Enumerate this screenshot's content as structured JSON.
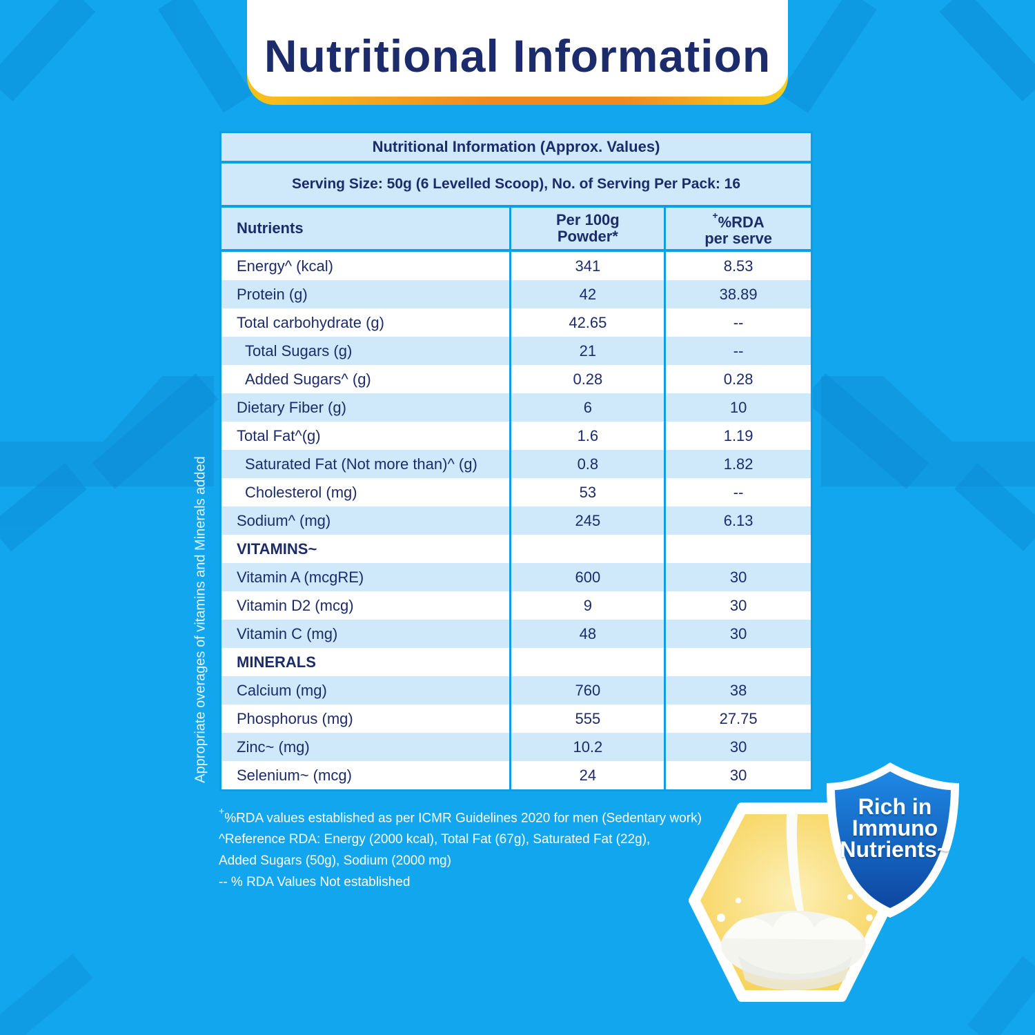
{
  "header": {
    "title": "Nutritional Information"
  },
  "table": {
    "title": "Nutritional Information (Approx. Values)",
    "serving": "Serving Size: 50g (6 Levelled Scoop), No. of Serving Per Pack: 16",
    "columns": {
      "nutrients": "Nutrients",
      "per100_line1": "Per 100g",
      "per100_line2": "Powder*",
      "rda_plus": "+",
      "rda_line1": "%RDA",
      "rda_line2": "per serve"
    },
    "rows": [
      {
        "name": "Energy^ (kcal)",
        "per100": "341",
        "rda": "8.53"
      },
      {
        "name": "Protein (g)",
        "per100": "42",
        "rda": "38.89"
      },
      {
        "name": "Total carbohydrate (g)",
        "per100": "42.65",
        "rda": "--"
      },
      {
        "name": "Total Sugars (g)",
        "per100": "21",
        "rda": "--"
      },
      {
        "name": "Added Sugars^ (g)",
        "per100": "0.28",
        "rda": "0.28"
      },
      {
        "name": "Dietary Fiber (g)",
        "per100": "6",
        "rda": "10"
      },
      {
        "name": "Total Fat^(g)",
        "per100": "1.6",
        "rda": "1.19"
      },
      {
        "name": "Saturated Fat (Not more than)^ (g)",
        "per100": "0.8",
        "rda": "1.82"
      },
      {
        "name": "Cholesterol (mg)",
        "per100": "53",
        "rda": "--"
      },
      {
        "name": "Sodium^ (mg)",
        "per100": "245",
        "rda": "6.13"
      },
      {
        "name": "VITAMINS~",
        "per100": "",
        "rda": ""
      },
      {
        "name": "Vitamin A (mcgRE)",
        "per100": "600",
        "rda": "30"
      },
      {
        "name": "Vitamin D2 (mcg)",
        "per100": "9",
        "rda": "30"
      },
      {
        "name": "Vitamin C (mg)",
        "per100": "48",
        "rda": "30"
      },
      {
        "name": "MINERALS",
        "per100": "",
        "rda": ""
      },
      {
        "name": "Calcium (mg)",
        "per100": "760",
        "rda": "38"
      },
      {
        "name": "Phosphorus (mg)",
        "per100": "555",
        "rda": "27.75"
      },
      {
        "name": "Zinc~ (mg)",
        "per100": "10.2",
        "rda": "30"
      },
      {
        "name": "Selenium~ (mcg)",
        "per100": "24",
        "rda": "30"
      }
    ]
  },
  "side_note": "Appropriate overages of vitamins and Minerals added",
  "footnotes": {
    "line1_plus": "+",
    "line1": "%RDA values established as per ICMR Guidelines 2020 for men (Sedentary work)",
    "line2": "^Reference RDA: Energy (2000 kcal), Total Fat (67g), Saturated Fat (22g),",
    "line3": "Added Sugars (50g), Sodium (2000 mg)",
    "line4": "-- % RDA Values Not established"
  },
  "badge": {
    "line1": "Rich in",
    "line2": "Immuno",
    "line3": "Nutrients~"
  },
  "colors": {
    "background": "#12a6ee",
    "navy_text": "#1c2b6b",
    "table_light_blue": "#cfe9fa",
    "table_border": "#0e9ee6",
    "banner_orange": "#f08a1e",
    "banner_yellow": "#f6c21b",
    "badge_blue": "#1565c0",
    "hexagon_yellow": "#fbe08a"
  }
}
